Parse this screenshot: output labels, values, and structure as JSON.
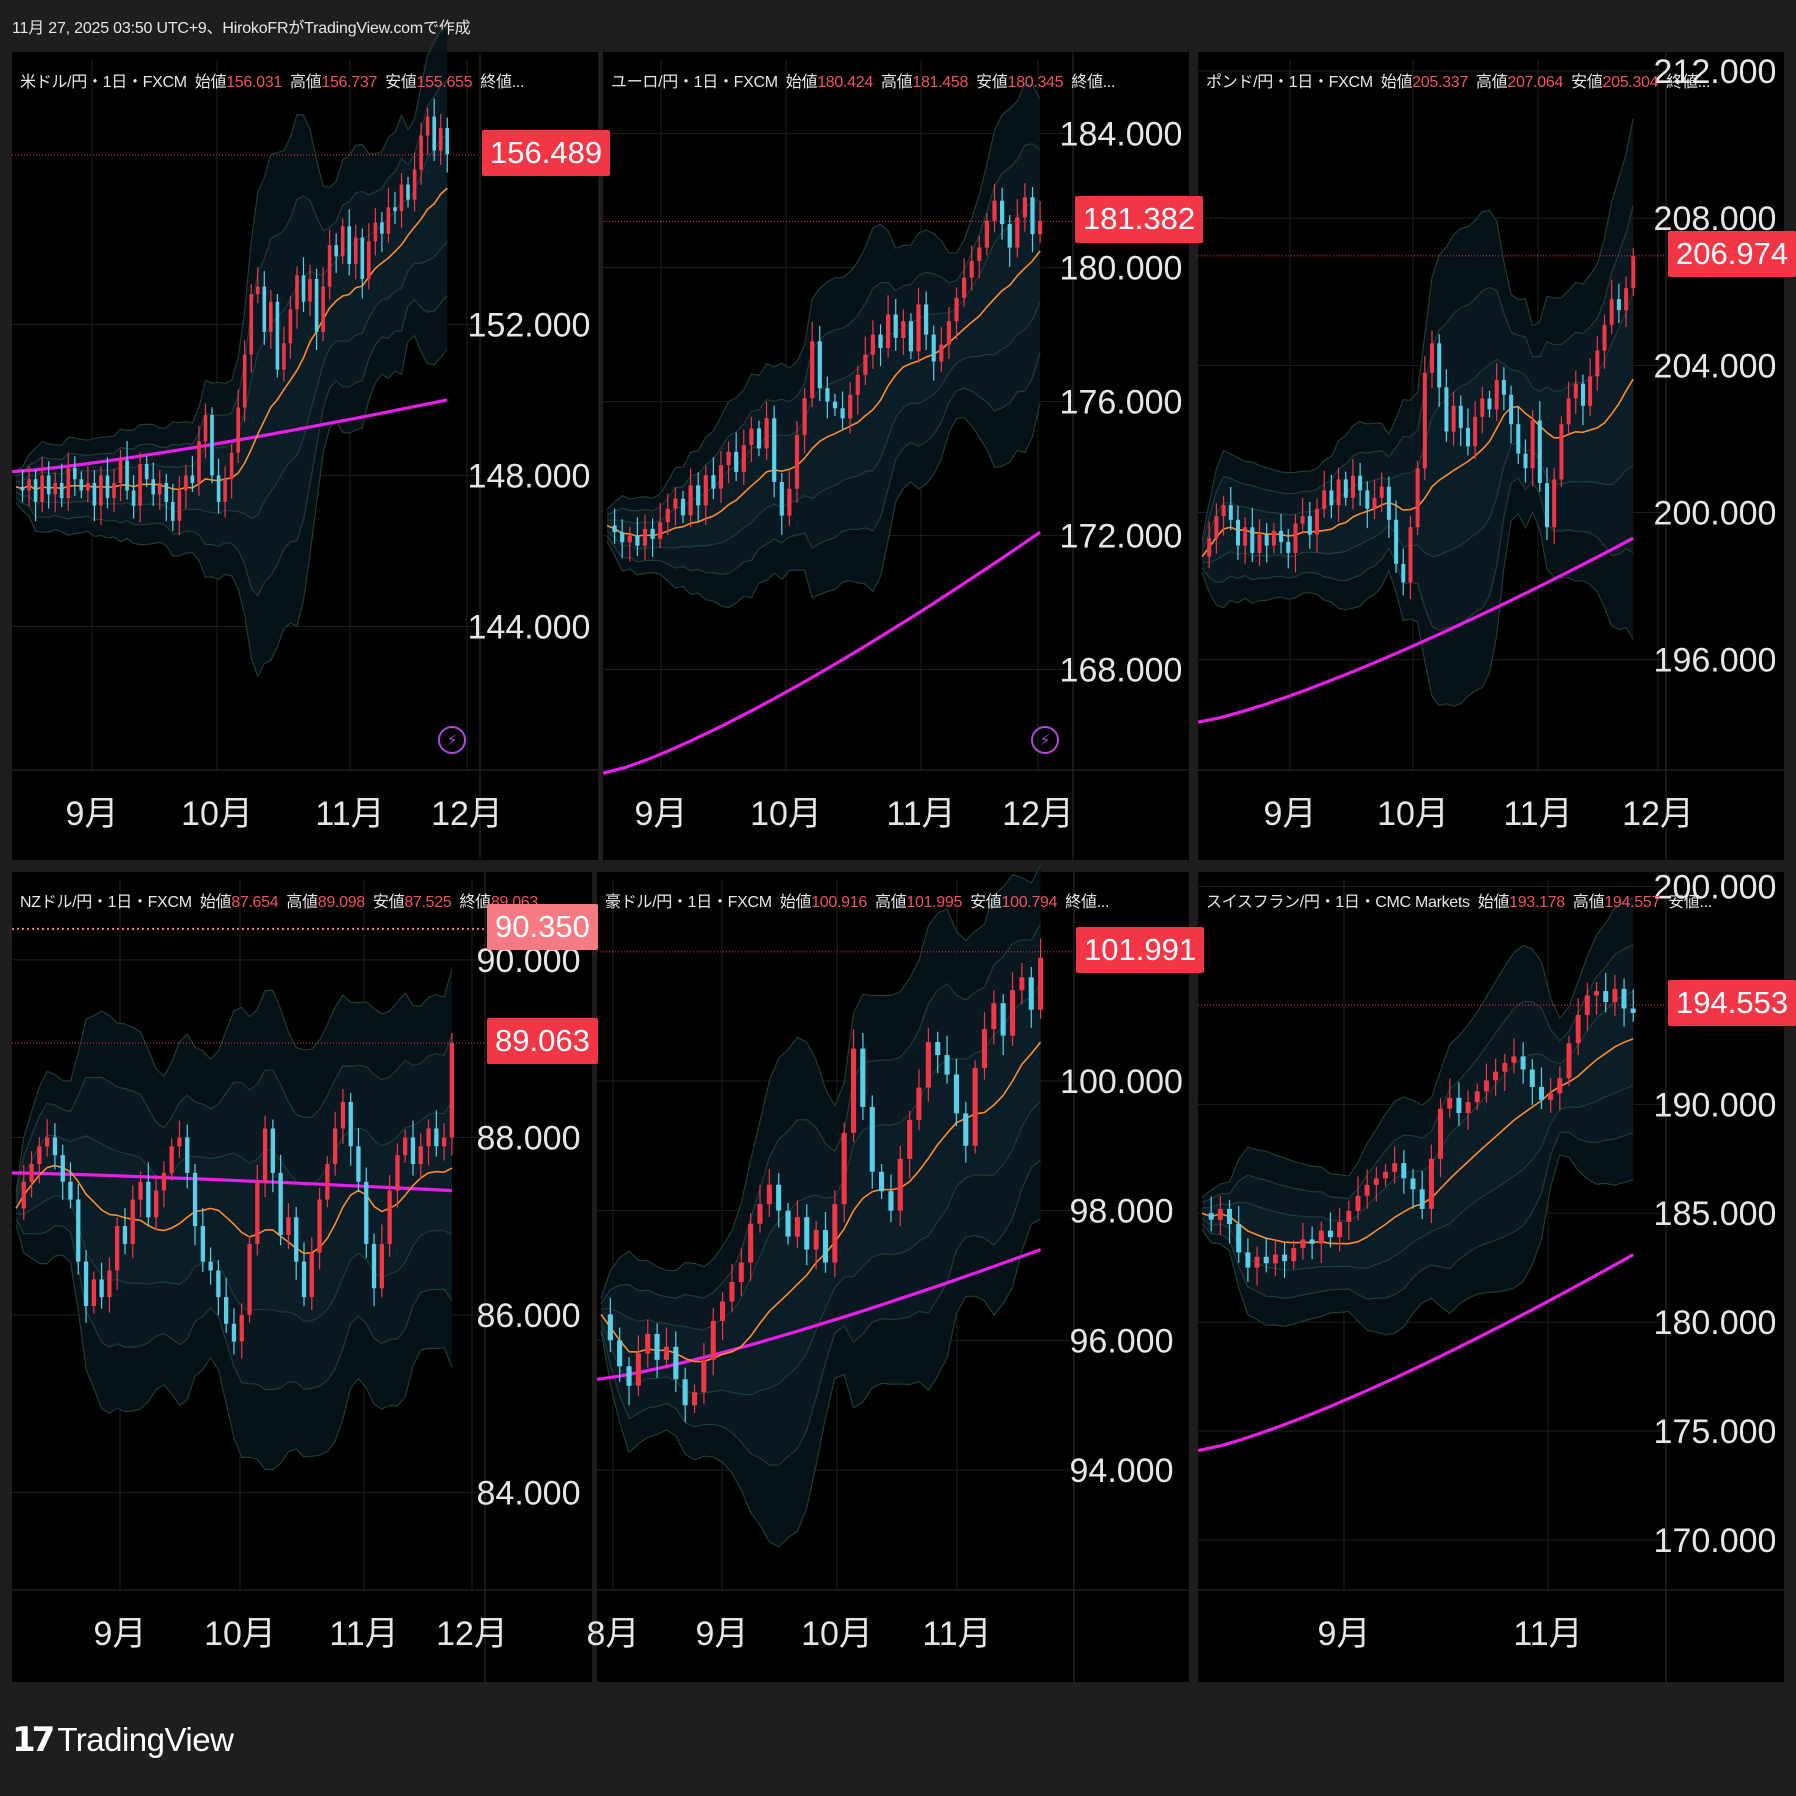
{
  "header": {
    "text": "11月 27, 2025 03:50 UTC+9、HirokoFRがTradingView.comで作成"
  },
  "logo": {
    "mark": "17",
    "text": "TradingView"
  },
  "colors": {
    "up": "#f23645",
    "down": "#5ad0e8",
    "ma_short": "#ff8b2c",
    "ma_long": "#e91eea",
    "band": "#1d3a34",
    "bg": "#000000"
  },
  "panels": [
    {
      "id": "usdjpy",
      "title": {
        "pre": "米ドル/円・1日・FXCM",
        "o_lbl": "始値",
        "o": "156.031",
        "h_lbl": "高値",
        "h": "156.737",
        "l_lbl": "安値",
        "l": "155.655",
        "c_lbl": "終値",
        "c": "",
        "dots": "..."
      },
      "yticks": [
        "144.000",
        "148.000",
        "152.000"
      ],
      "ytick_vals": [
        144,
        148,
        152
      ],
      "ymin": 140.2,
      "ymax": 159.0,
      "months": [
        "9月",
        "10月",
        "11月",
        "12月"
      ],
      "price": "156.489",
      "price_val": 156.489,
      "bolt": "⚡"
    },
    {
      "id": "eurjpy",
      "title": {
        "pre": "ユーロ/円・1日・FXCM",
        "o_lbl": "始値",
        "o": "180.424",
        "h_lbl": "高値",
        "h": "181.458",
        "l_lbl": "安値",
        "l": "180.345",
        "c_lbl": "終値",
        "c": "",
        "dots": "..."
      },
      "yticks": [
        "168.000",
        "172.000",
        "176.000",
        "180.000",
        "184.000"
      ],
      "ytick_vals": [
        168,
        172,
        176,
        180,
        184
      ],
      "ymin": 165.0,
      "ymax": 186.2,
      "months": [
        "9月",
        "10月",
        "11月",
        "12月"
      ],
      "price": "181.382",
      "price_val": 181.382,
      "bolt": "⚡"
    },
    {
      "id": "gbpjpy",
      "title": {
        "pre": "ポンド/円・1日・FXCM",
        "o_lbl": "始値",
        "o": "205.337",
        "h_lbl": "高値",
        "h": "207.064",
        "l_lbl": "安値",
        "l": "205.304",
        "c_lbl": "終値",
        "c": "",
        "dots": "..."
      },
      "yticks": [
        "196.000",
        "200.000",
        "204.000",
        "208.000",
        "212.000"
      ],
      "ytick_vals": [
        196,
        200,
        204,
        208,
        212
      ],
      "ymin": 193.0,
      "ymax": 212.3,
      "months": [
        "9月",
        "10月",
        "11月",
        "12月"
      ],
      "price": "206.974",
      "price_val": 206.974,
      "bolt": ""
    },
    {
      "id": "nzdjpy",
      "title": {
        "pre": "NZドル/円・1日・FXCM",
        "o_lbl": "始値",
        "o": "87.654",
        "h_lbl": "高値",
        "h": "89.098",
        "l_lbl": "安値",
        "l": "87.525",
        "c_lbl": "終値",
        "c": "89.063",
        "dots": "..."
      },
      "yticks": [
        "84.000",
        "86.000",
        "88.000",
        "90.000"
      ],
      "ytick_vals": [
        84,
        86,
        88,
        90
      ],
      "ymin": 82.9,
      "ymax": 90.9,
      "months": [
        "9月",
        "10月",
        "11月",
        "12月"
      ],
      "price": "89.063",
      "price_val": 89.063,
      "price2": "90.350",
      "price2_val": 90.35,
      "bolt": ""
    },
    {
      "id": "audjpy",
      "title": {
        "pre": "豪ドル/円・1日・FXCM",
        "o_lbl": "始値",
        "o": "100.916",
        "h_lbl": "高値",
        "h": "101.995",
        "l_lbl": "安値",
        "l": "100.794",
        "c_lbl": "終値",
        "c": "",
        "dots": "..."
      },
      "yticks": [
        "94.000",
        "96.000",
        "98.000",
        "100.000"
      ],
      "ytick_vals": [
        94,
        96,
        98,
        100
      ],
      "ymin": 92.15,
      "ymax": 103.1,
      "months": [
        "8月",
        "9月",
        "10月",
        "11月"
      ],
      "price": "101.991",
      "price_val": 101.991,
      "bolt": ""
    },
    {
      "id": "chfjpy",
      "title": {
        "pre": "スイスフラン/円・1日・CMC Markets",
        "o_lbl": "始値",
        "o": "193.178",
        "h_lbl": "高値",
        "h": "194.557",
        "l_lbl": "安値",
        "l": "",
        "c_lbl": "",
        "c": "",
        "dots": "..."
      },
      "yticks": [
        "170.000",
        "175.000",
        "180.000",
        "185.000",
        "190.000",
        "200.000"
      ],
      "ytick_vals": [
        170,
        175,
        180,
        185,
        190,
        200
      ],
      "ymin": 167.7,
      "ymax": 200.3,
      "months": [
        "9月",
        "11月"
      ],
      "price": "194.553",
      "price_val": 194.553,
      "bolt": ""
    }
  ],
  "chart_data": [
    {
      "type": "candlestick",
      "title": "米ドル/円・1日・FXCM",
      "ylim": [
        140.2,
        159.0
      ],
      "x": [
        "9月",
        "10月",
        "11月",
        "12月"
      ],
      "last": 156.489,
      "path": [
        147.7,
        147.6,
        147.9,
        147.3,
        148.0,
        147.5,
        147.8,
        147.4,
        148.2,
        147.9,
        147.6,
        147.8,
        147.2,
        148.0,
        147.4,
        147.8,
        148.4,
        147.6,
        147.2,
        148.3,
        147.9,
        147.5,
        147.8,
        147.3,
        146.8,
        147.6,
        148.0,
        147.8,
        148.9,
        149.6,
        148.0,
        147.3,
        147.9,
        148.6,
        149.8,
        151.2,
        152.8,
        153.0,
        151.8,
        152.6,
        150.8,
        151.5,
        152.4,
        153.3,
        152.6,
        153.2,
        151.8,
        153.0,
        154.1,
        153.8,
        154.6,
        153.6,
        154.3,
        153.2,
        154.2,
        154.7,
        154.4,
        155.1,
        155.0,
        155.7,
        155.3,
        156.1,
        157.0,
        157.5,
        156.6,
        157.2,
        156.5
      ],
      "sma_long": {
        "from": 148.1,
        "to": 150.0
      }
    },
    {
      "type": "candlestick",
      "title": "ユーロ/円・1日・FXCM",
      "ylim": [
        165.0,
        186.2
      ],
      "x": [
        "9月",
        "10月",
        "11月",
        "12月"
      ],
      "last": 181.382,
      "path": [
        172.3,
        172.1,
        171.8,
        172.0,
        171.7,
        172.2,
        171.9,
        172.4,
        172.8,
        173.1,
        172.6,
        173.5,
        172.9,
        173.8,
        173.4,
        174.1,
        174.5,
        173.9,
        174.7,
        175.2,
        174.6,
        175.5,
        173.6,
        172.6,
        173.4,
        175.0,
        176.1,
        177.8,
        176.4,
        176.0,
        175.8,
        175.5,
        176.2,
        176.8,
        177.4,
        178.0,
        177.6,
        178.6,
        177.9,
        178.4,
        177.5,
        178.9,
        178.0,
        177.2,
        177.7,
        178.4,
        179.1,
        179.7,
        180.2,
        180.6,
        181.4,
        182.0,
        181.3,
        180.6,
        181.5,
        182.1,
        181.0,
        181.4
      ],
      "sma_long": {
        "from": 164.9,
        "to": 172.1
      }
    },
    {
      "type": "candlestick",
      "title": "ポンド/円・1日・FXCM",
      "ylim": [
        193.0,
        212.3
      ],
      "x": [
        "9月",
        "10月",
        "11月",
        "12月"
      ],
      "last": 206.974,
      "path": [
        198.8,
        199.3,
        199.9,
        200.2,
        199.8,
        199.1,
        199.6,
        198.9,
        199.4,
        199.1,
        199.5,
        199.2,
        198.9,
        199.7,
        199.9,
        199.4,
        200.1,
        200.6,
        200.2,
        200.9,
        200.4,
        201.0,
        200.6,
        200.1,
        200.4,
        200.7,
        199.8,
        198.6,
        198.1,
        199.6,
        201.2,
        203.8,
        204.6,
        203.4,
        202.2,
        202.9,
        202.3,
        201.8,
        202.6,
        203.1,
        202.8,
        203.6,
        203.2,
        202.4,
        201.6,
        201.2,
        202.5,
        200.8,
        199.6,
        200.9,
        202.4,
        203.1,
        203.5,
        202.9,
        203.7,
        204.4,
        205.1,
        205.8,
        205.5,
        206.1,
        206.97
      ],
      "sma_long": {
        "from": 194.3,
        "to": 199.3
      }
    },
    {
      "type": "candlestick",
      "title": "NZドル/円・1日・FXCM",
      "ylim": [
        82.9,
        90.9
      ],
      "x": [
        "9月",
        "10月",
        "11月",
        "12月"
      ],
      "last": 89.063,
      "path": [
        87.2,
        87.5,
        87.7,
        87.9,
        88.0,
        87.8,
        87.5,
        87.3,
        86.6,
        86.1,
        86.4,
        86.2,
        86.5,
        87.0,
        86.8,
        87.3,
        87.5,
        87.1,
        87.4,
        87.6,
        87.9,
        88.0,
        87.6,
        87.0,
        86.6,
        86.5,
        86.2,
        85.9,
        85.7,
        86.0,
        86.8,
        87.5,
        88.1,
        87.6,
        86.9,
        87.1,
        86.6,
        86.2,
        86.7,
        87.3,
        87.7,
        88.1,
        88.4,
        87.9,
        87.5,
        86.8,
        86.3,
        86.8,
        87.4,
        87.8,
        88.0,
        87.7,
        87.9,
        88.1,
        87.9,
        88.0,
        89.06
      ],
      "sma_long": {
        "from": 87.6,
        "to": 87.4
      }
    },
    {
      "type": "candlestick",
      "title": "豪ドル/円・1日・FXCM",
      "ylim": [
        92.15,
        103.1
      ],
      "x": [
        "8月",
        "9月",
        "10月",
        "11月"
      ],
      "last": 101.991,
      "path": [
        96.4,
        96.0,
        95.6,
        95.3,
        95.8,
        96.1,
        95.7,
        95.9,
        95.4,
        95.0,
        95.2,
        95.7,
        96.3,
        96.6,
        96.9,
        97.2,
        97.8,
        98.1,
        98.4,
        98.0,
        97.6,
        97.9,
        97.4,
        97.7,
        97.2,
        98.1,
        99.2,
        100.5,
        99.6,
        98.6,
        98.3,
        98.0,
        98.8,
        99.4,
        99.9,
        100.6,
        100.4,
        100.1,
        99.5,
        99.0,
        100.2,
        100.8,
        101.2,
        100.7,
        101.4,
        101.6,
        101.1,
        101.9
      ],
      "sma_long": {
        "from": 95.4,
        "to": 97.4
      }
    },
    {
      "type": "candlestick",
      "title": "スイスフラン/円・1日・CMC Markets",
      "ylim": [
        167.7,
        200.3
      ],
      "x": [
        "9月",
        "11月"
      ],
      "last": 194.553,
      "path": [
        185.0,
        184.7,
        185.2,
        184.5,
        183.2,
        182.5,
        183.0,
        182.7,
        183.1,
        182.8,
        183.4,
        183.8,
        183.6,
        184.2,
        183.9,
        184.6,
        185.1,
        185.8,
        186.3,
        186.6,
        186.9,
        187.3,
        186.6,
        186.1,
        185.2,
        187.5,
        189.8,
        190.3,
        189.6,
        190.1,
        190.6,
        191.1,
        191.5,
        191.9,
        192.2,
        191.6,
        190.8,
        190.2,
        190.5,
        191.2,
        192.8,
        194.1,
        195.0,
        195.2,
        194.7,
        195.3,
        194.4,
        194.2
      ],
      "sma_long": {
        "from": 174.1,
        "to": 183.1
      }
    }
  ]
}
